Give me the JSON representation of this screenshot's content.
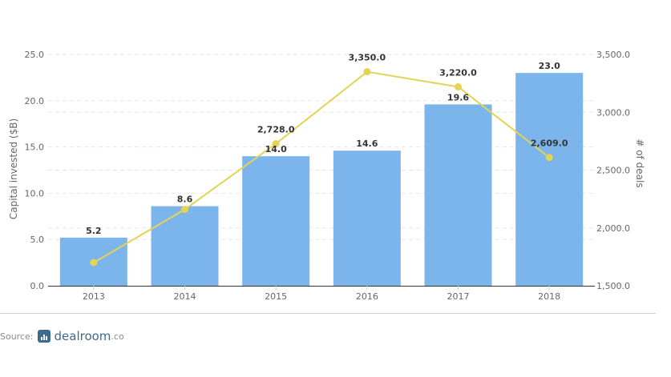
{
  "chart_data": {
    "type": "bar",
    "categories": [
      "2013",
      "2014",
      "2015",
      "2016",
      "2017",
      "2018"
    ],
    "series": [
      {
        "type": "bar",
        "axis": "left",
        "values": [
          5.2,
          8.6,
          14.0,
          14.6,
          19.6,
          23.0
        ],
        "labels": [
          "5.2",
          "8.6",
          "14.0",
          "14.6",
          "19.6",
          "23.0"
        ]
      },
      {
        "type": "line",
        "axis": "right",
        "values": [
          1700,
          2160,
          2728,
          3350,
          3220,
          2609
        ],
        "labels": [
          "",
          "",
          "2,728.0",
          "3,350.0",
          "3,220.0",
          "2,609.0"
        ]
      }
    ],
    "ylabel": "Capital invested ($B)",
    "y2label": "# of deals",
    "ylim": [
      0,
      25
    ],
    "y2lim": [
      1500,
      3500
    ],
    "yticks": [
      0,
      5,
      10,
      15,
      20,
      25
    ],
    "ytick_labels": [
      "0.0",
      "5.0",
      "10.0",
      "15.0",
      "20.0",
      "25.0"
    ],
    "y2ticks": [
      1500,
      2000,
      2500,
      3000,
      3500
    ],
    "y2tick_labels": [
      "1,500.0",
      "2,000.0",
      "2,500.0",
      "3,000.0",
      "3,500.0"
    ],
    "grid": true,
    "colors": {
      "bar": "#7cb5ec",
      "line": "#e4d354",
      "grid": "#e6e6e6",
      "baseline": "#333333"
    }
  },
  "footer": {
    "source_label": "Source:",
    "brand": "dealroom",
    "brand_tld": ".co"
  }
}
